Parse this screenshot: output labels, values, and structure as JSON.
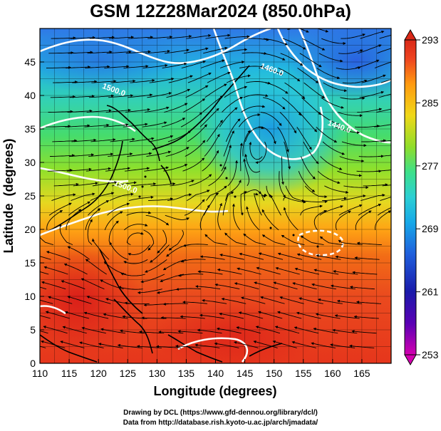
{
  "title": "GSM 12Z28Mar2024 (850.0hPa)",
  "map": {
    "xaxis": {
      "label": "Longitude (degrees)",
      "range": [
        110,
        170
      ],
      "ticks": [
        110,
        115,
        120,
        125,
        130,
        135,
        140,
        145,
        150,
        155,
        160,
        165
      ]
    },
    "yaxis": {
      "label": "Latitude  (degrees)",
      "range": [
        0,
        50
      ],
      "ticks": [
        0,
        5,
        10,
        15,
        20,
        25,
        30,
        35,
        40,
        45
      ]
    },
    "colorbar": {
      "ticks": [
        253,
        261,
        269,
        277,
        285,
        293
      ],
      "range": [
        253,
        293
      ],
      "colors": [
        "#cc00aa",
        "#5a00b4",
        "#1a1aaa",
        "#1f5fdc",
        "#16a8e8",
        "#2ccfd4",
        "#3de08a",
        "#8fdd2a",
        "#f0d818",
        "#ff9a10",
        "#ee4420",
        "#d92818"
      ]
    },
    "contours": [
      {
        "label": "1460.0",
        "lon": 149.5,
        "lat": 43.5
      },
      {
        "label": "1500.0",
        "lon": 122.5,
        "lat": 40.5
      },
      {
        "label": "1440.0",
        "lon": 161.0,
        "lat": 35.0
      },
      {
        "label": "1500.0",
        "lon": 124.5,
        "lat": 26.0
      }
    ]
  },
  "credits": {
    "line1": "Drawing by DCL (https://www.gfd-dennou.org/library/dcl/)",
    "line2": "Data from http://database.rish.kyoto-u.ac.jp/arch/jmadata/"
  }
}
